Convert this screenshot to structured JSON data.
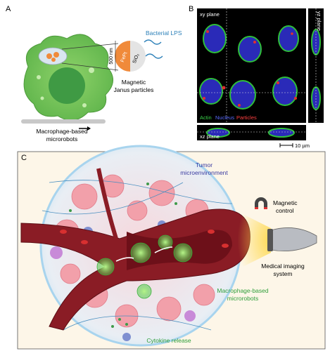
{
  "panel_a": {
    "label": "A",
    "size": "500 nm",
    "core": "FePt",
    "shell": "SiO₂",
    "coating": "Bacterial LPS",
    "particle_label": [
      "Magnetic",
      "Janus particles"
    ],
    "cell_label": [
      "Macrophage-based",
      "microrobots"
    ]
  },
  "panel_b": {
    "label": "B",
    "xy_plane": "xy plane",
    "yz_plane": "yz plane",
    "xz_plane": "xz plane",
    "legend": [
      "Actin",
      "Nucleus",
      "Particles"
    ],
    "scale_bar": "10 µm"
  },
  "panel_c": {
    "label": "C",
    "tumor_label": [
      "Tumor",
      "microenvironment"
    ],
    "magnet_label": [
      "Magnetic",
      "control"
    ],
    "imaging_label": [
      "Medical imaging",
      "system"
    ],
    "robot_label": [
      "Macrophage-based",
      "microrobots"
    ],
    "cytokine_label": "Cytokine release"
  }
}
